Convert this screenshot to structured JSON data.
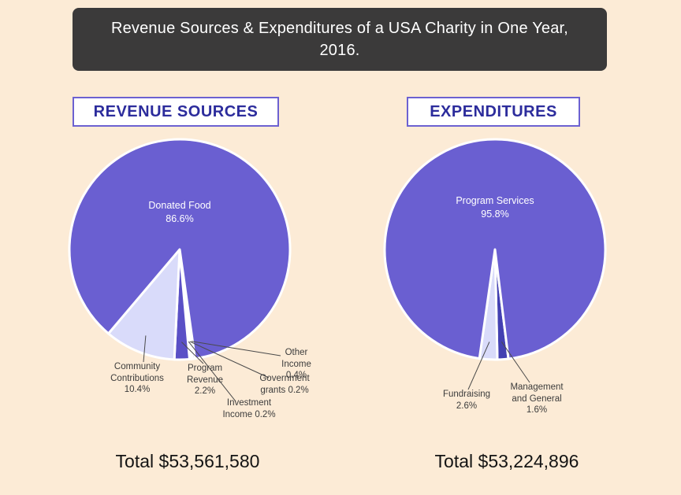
{
  "banner": {
    "text": "Revenue Sources & Expenditures of a USA Charity in One Year, 2016."
  },
  "colors": {
    "page_bg": "#fcebd6",
    "banner_bg": "#3b3a3a",
    "banner_text": "#ffffff",
    "header_text": "#2c2c9c",
    "header_border": "#6c61d1",
    "main_purple": "#6a5fd1",
    "light_lavender": "#d9dbfa",
    "dark_indigo": "#4340b2",
    "leader_line": "#4a4a4a",
    "label_text": "#3c3c3c"
  },
  "sections": [
    {
      "header": "REVENUE SOURCES",
      "total": "Total $53,561,580"
    },
    {
      "header": "EXPENDITURES",
      "total": "Total $53,224,896"
    }
  ],
  "chart_data": [
    {
      "type": "pie",
      "title": "REVENUE SOURCES",
      "total_label": "Total $53,561,580",
      "total_value": 53561580,
      "units": "percent",
      "direction": "clockwise",
      "start_angle_deg": 172,
      "slices": [
        {
          "label": "Other Income",
          "pct": 0.4,
          "color": "#c8c5f4",
          "label_lines": [
            "Other",
            "Income",
            "0.4%"
          ]
        },
        {
          "label": "Government grants",
          "pct": 0.2,
          "color": "#aaa4ec",
          "label_lines": [
            "Government",
            "grants 0.2%"
          ]
        },
        {
          "label": "Investment Income",
          "pct": 0.2,
          "color": "#7d73d9",
          "label_lines": [
            "Investment",
            "Income 0.2%"
          ]
        },
        {
          "label": "Program Revenue",
          "pct": 2.2,
          "color": "#5a50c6",
          "label_lines": [
            "Program",
            "Revenue",
            "2.2%"
          ]
        },
        {
          "label": "Community Contributions",
          "pct": 10.4,
          "color": "#d9dbfa",
          "label_lines": [
            "Community",
            "Contributions",
            "10.4%"
          ]
        },
        {
          "label": "Donated Food",
          "pct": 86.6,
          "color": "#6a5fd1",
          "label_inside": true,
          "label_lines": [
            "Donated Food",
            "86.6%"
          ]
        }
      ]
    },
    {
      "type": "pie",
      "title": "EXPENDITURES",
      "total_label": "Total $53,224,896",
      "total_value": 53224896,
      "units": "percent",
      "direction": "clockwise",
      "start_angle_deg": 173,
      "slices": [
        {
          "label": "Management and General",
          "pct": 1.6,
          "color": "#4340b2",
          "label_lines": [
            "Management",
            "and General",
            "1.6%"
          ]
        },
        {
          "label": "Fundraising",
          "pct": 2.6,
          "color": "#d9dbfa",
          "label_lines": [
            "Fundraising",
            "2.6%"
          ]
        },
        {
          "label": "Program Services",
          "pct": 95.8,
          "color": "#6a5fd1",
          "label_inside": true,
          "label_lines": [
            "Program Services",
            "95.8%"
          ]
        }
      ]
    }
  ]
}
